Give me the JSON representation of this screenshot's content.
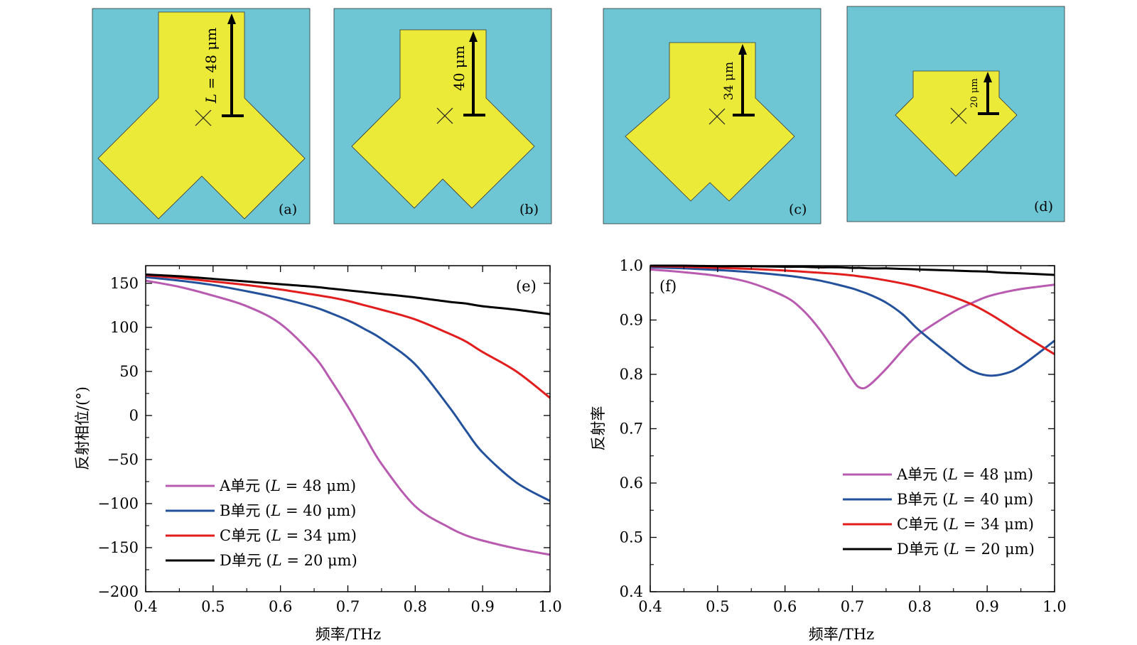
{
  "colors": {
    "substrate": "#6ec6d4",
    "patch": "#ecea38",
    "A": "#b85bb0",
    "B": "#23519c",
    "C": "#e11d1d",
    "D": "#000000"
  },
  "unit_cells": [
    {
      "panel": "(a)",
      "dim_label_var": "L",
      "dim_label_rest": " = 48 μm"
    },
    {
      "panel": "(b)",
      "dim_label": "40 μm"
    },
    {
      "panel": "(c)",
      "dim_label": "34 μm"
    },
    {
      "panel": "(d)",
      "dim_label": "20 μm"
    }
  ],
  "legend": [
    {
      "prefix": "A单元 (",
      "var": "L",
      "suffix": " = 48 μm)"
    },
    {
      "prefix": "B单元 (",
      "var": "L",
      "suffix": " = 40 μm)"
    },
    {
      "prefix": "C单元 (",
      "var": "L",
      "suffix": " = 34 μm)"
    },
    {
      "prefix": "D单元 (",
      "var": "L",
      "suffix": " = 20 μm)"
    }
  ],
  "chart_data": [
    {
      "type": "line",
      "panel": "(e)",
      "xlabel": "频率/THz",
      "ylabel": "反射相位/(°)",
      "xlim": [
        0.4,
        1.0
      ],
      "ylim": [
        -200,
        170
      ],
      "xticks": [
        "0.4",
        "0.5",
        "0.6",
        "0.7",
        "0.8",
        "0.9",
        "1.0"
      ],
      "yticks": [
        "150",
        "100",
        "50",
        "0",
        "−50",
        "−100",
        "−150",
        "−200"
      ],
      "legend_position": "bottom-left",
      "x": [
        0.4,
        0.45,
        0.5,
        0.55,
        0.6,
        0.65,
        0.675,
        0.7,
        0.725,
        0.75,
        0.8,
        0.85,
        0.875,
        0.9,
        0.95,
        1.0
      ],
      "series": [
        {
          "name": "A单元 (L = 48 μm)",
          "values": [
            153,
            146,
            136,
            124,
            104,
            67,
            40,
            10,
            -23,
            -55,
            -103,
            -127,
            -136,
            -142,
            -151,
            -158
          ]
        },
        {
          "name": "B单元 (L = 40 μm)",
          "values": [
            157,
            153,
            148,
            141,
            133,
            123,
            116,
            108,
            98,
            87,
            58,
            10,
            -17,
            -42,
            -76,
            -97
          ]
        },
        {
          "name": "C单元 (L = 34 μm)",
          "values": [
            159,
            156,
            152,
            148,
            143,
            137,
            134,
            130,
            125,
            120,
            109,
            93,
            84,
            72,
            50,
            20
          ]
        },
        {
          "name": "D单元 (L = 20 μm)",
          "values": [
            160,
            158,
            155,
            152,
            149,
            146,
            144,
            142,
            140,
            138,
            134,
            129,
            127,
            124,
            120,
            115
          ]
        }
      ]
    },
    {
      "type": "line",
      "panel": "(f)",
      "xlabel": "频率/THz",
      "ylabel": "反射率",
      "xlim": [
        0.4,
        1.0
      ],
      "ylim": [
        0.4,
        1.0
      ],
      "xticks": [
        "0.4",
        "0.5",
        "0.6",
        "0.7",
        "0.8",
        "0.9",
        "1.0"
      ],
      "yticks": [
        "1.0",
        "0.9",
        "0.8",
        "0.7",
        "0.6",
        "0.5",
        "0.4"
      ],
      "legend_position": "bottom-right",
      "x": [
        0.4,
        0.45,
        0.5,
        0.55,
        0.6,
        0.625,
        0.65,
        0.675,
        0.7,
        0.712,
        0.725,
        0.75,
        0.775,
        0.8,
        0.85,
        0.875,
        0.9,
        0.925,
        0.95,
        1.0
      ],
      "series": [
        {
          "name": "A单元 (L = 48 μm)",
          "values": [
            0.993,
            0.988,
            0.981,
            0.968,
            0.943,
            0.92,
            0.885,
            0.84,
            0.79,
            0.775,
            0.78,
            0.81,
            0.845,
            0.875,
            0.915,
            0.93,
            0.943,
            0.951,
            0.957,
            0.965
          ]
        },
        {
          "name": "B单元 (L = 40 μm)",
          "values": [
            0.997,
            0.995,
            0.992,
            0.988,
            0.982,
            0.978,
            0.973,
            0.966,
            0.958,
            0.953,
            0.947,
            0.932,
            0.91,
            0.88,
            0.83,
            0.808,
            0.798,
            0.801,
            0.815,
            0.862
          ]
        },
        {
          "name": "C单元 (L = 34 μm)",
          "values": [
            0.999,
            0.998,
            0.996,
            0.994,
            0.991,
            0.989,
            0.987,
            0.985,
            0.982,
            0.98,
            0.978,
            0.973,
            0.967,
            0.96,
            0.942,
            0.93,
            0.914,
            0.895,
            0.875,
            0.837
          ]
        },
        {
          "name": "D单元 (L = 20 μm)",
          "values": [
            1.0,
            1.0,
            0.999,
            0.999,
            0.998,
            0.998,
            0.997,
            0.997,
            0.996,
            0.996,
            0.995,
            0.995,
            0.994,
            0.993,
            0.991,
            0.99,
            0.989,
            0.987,
            0.986,
            0.983
          ]
        }
      ]
    }
  ]
}
